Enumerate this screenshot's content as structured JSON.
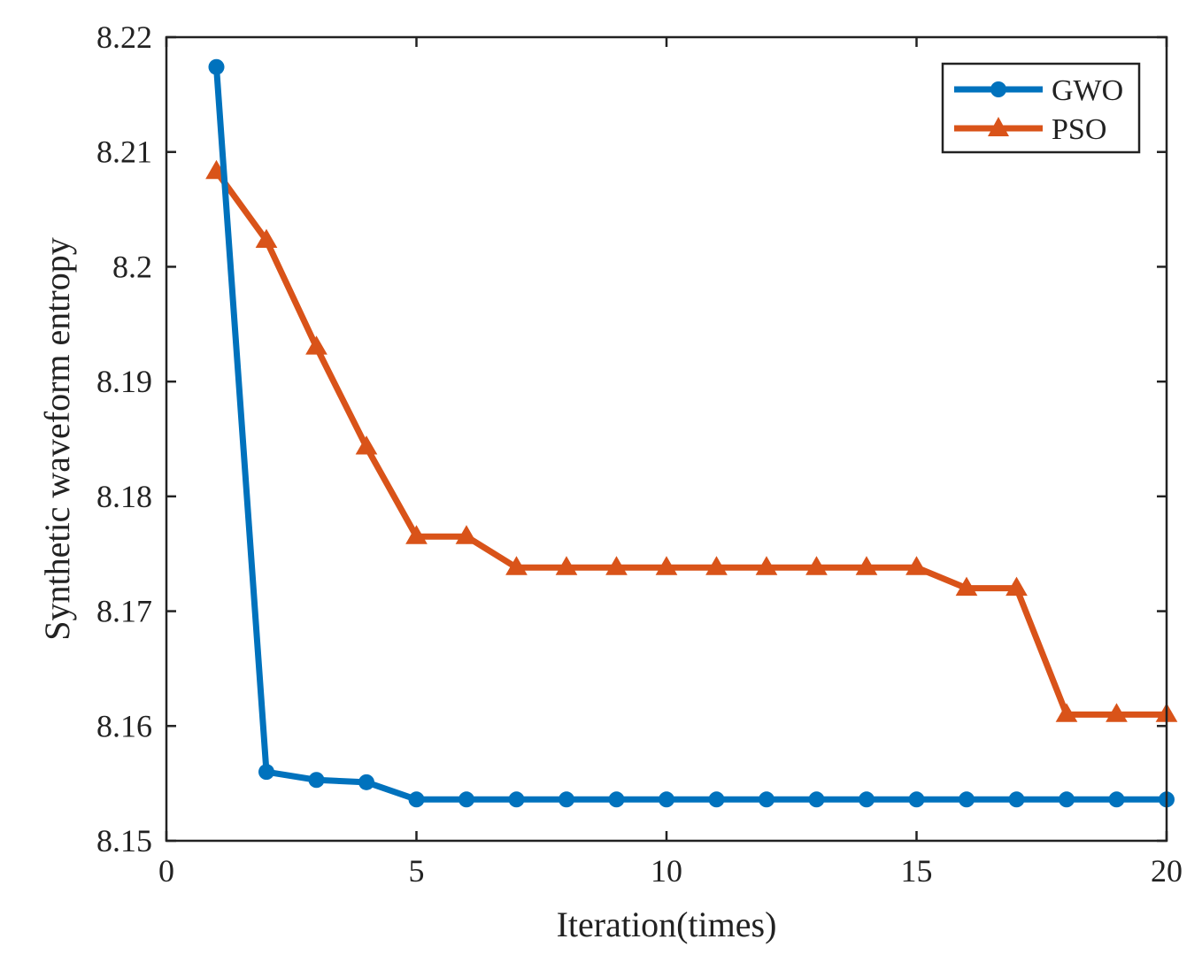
{
  "chart_data": {
    "type": "line",
    "title": "",
    "xlabel": "Iteration(times)",
    "ylabel": "Synthetic waveform entropy",
    "xlim": [
      0,
      20
    ],
    "ylim": [
      8.15,
      8.22
    ],
    "xticks": [
      0,
      5,
      10,
      15,
      20
    ],
    "xtick_labels": [
      "0",
      "5",
      "10",
      "15",
      "20"
    ],
    "yticks": [
      8.15,
      8.16,
      8.17,
      8.18,
      8.19,
      8.2,
      8.21,
      8.22
    ],
    "ytick_labels": [
      "8.15",
      "8.16",
      "8.17",
      "8.18",
      "8.19",
      "8.2",
      "8.21",
      "8.22"
    ],
    "grid": false,
    "legend_position": "top-right",
    "x": [
      1,
      2,
      3,
      4,
      5,
      6,
      7,
      8,
      9,
      10,
      11,
      12,
      13,
      14,
      15,
      16,
      17,
      18,
      19,
      20
    ],
    "series": [
      {
        "name": "GWO",
        "color": "#0072BD",
        "marker": "circle",
        "values": [
          8.2174,
          8.156,
          8.1553,
          8.1551,
          8.1536,
          8.1536,
          8.1536,
          8.1536,
          8.1536,
          8.1536,
          8.1536,
          8.1536,
          8.1536,
          8.1536,
          8.1536,
          8.1536,
          8.1536,
          8.1536,
          8.1536,
          8.1536
        ]
      },
      {
        "name": "PSO",
        "color": "#D95319",
        "marker": "triangle",
        "values": [
          8.2083,
          8.2023,
          8.193,
          8.1843,
          8.1765,
          8.1765,
          8.1738,
          8.1738,
          8.1738,
          8.1738,
          8.1738,
          8.1738,
          8.1738,
          8.1738,
          8.1738,
          8.172,
          8.172,
          8.161,
          8.161,
          8.161
        ]
      }
    ]
  }
}
